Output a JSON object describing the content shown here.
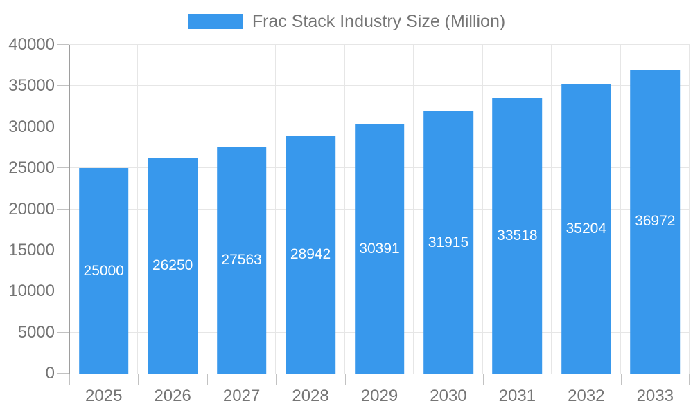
{
  "chart_data": {
    "type": "bar",
    "title": "",
    "legend": {
      "label": "Frac Stack Industry Size (Million)",
      "position": "top"
    },
    "categories": [
      "2025",
      "2026",
      "2027",
      "2028",
      "2029",
      "2030",
      "2031",
      "2032",
      "2033"
    ],
    "series": [
      {
        "name": "Frac Stack Industry Size (Million)",
        "values": [
          25000,
          26250,
          27563,
          28942,
          30391,
          31915,
          33518,
          35204,
          36972
        ]
      }
    ],
    "value_labels_shown": true,
    "xlabel": "",
    "ylabel": "",
    "ylim": [
      0,
      40000
    ],
    "y_ticks": [
      0,
      5000,
      10000,
      15000,
      20000,
      25000,
      30000,
      35000,
      40000
    ],
    "grid": true,
    "colors": {
      "bar": "#3898EC",
      "value_label": "#FFFFFF",
      "axis_text": "#757575",
      "grid": "#E6E6E6",
      "axis_line": "#9E9E9E",
      "tick": "#C2C2C2",
      "background": "#FFFFFF"
    }
  }
}
